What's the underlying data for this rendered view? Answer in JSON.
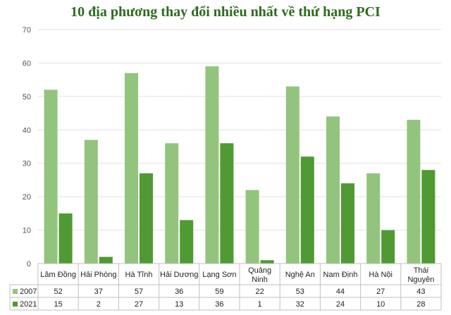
{
  "chart_data": {
    "type": "bar",
    "title": "10 địa phương thay đổi nhiều nhất về thứ hạng PCI",
    "categories": [
      "Lâm Đồng",
      "Hải Phòng",
      "Hà Tĩnh",
      "Hải Dương",
      "Lạng Sơn",
      "Quảng Ninh",
      "Nghệ An",
      "Nam Định",
      "Hà Nội",
      "Thái Nguyên"
    ],
    "series": [
      {
        "name": "2007",
        "values": [
          52,
          37,
          57,
          36,
          59,
          22,
          53,
          44,
          27,
          43
        ],
        "color": "#93c47d"
      },
      {
        "name": "2021",
        "values": [
          15,
          2,
          27,
          13,
          36,
          1,
          32,
          24,
          10,
          28
        ],
        "color": "#4f9a33"
      }
    ],
    "ylim": [
      0,
      70
    ],
    "yticks": [
      0,
      10,
      20,
      30,
      40,
      50,
      60,
      70
    ],
    "grid": true,
    "legend": "data-table"
  }
}
